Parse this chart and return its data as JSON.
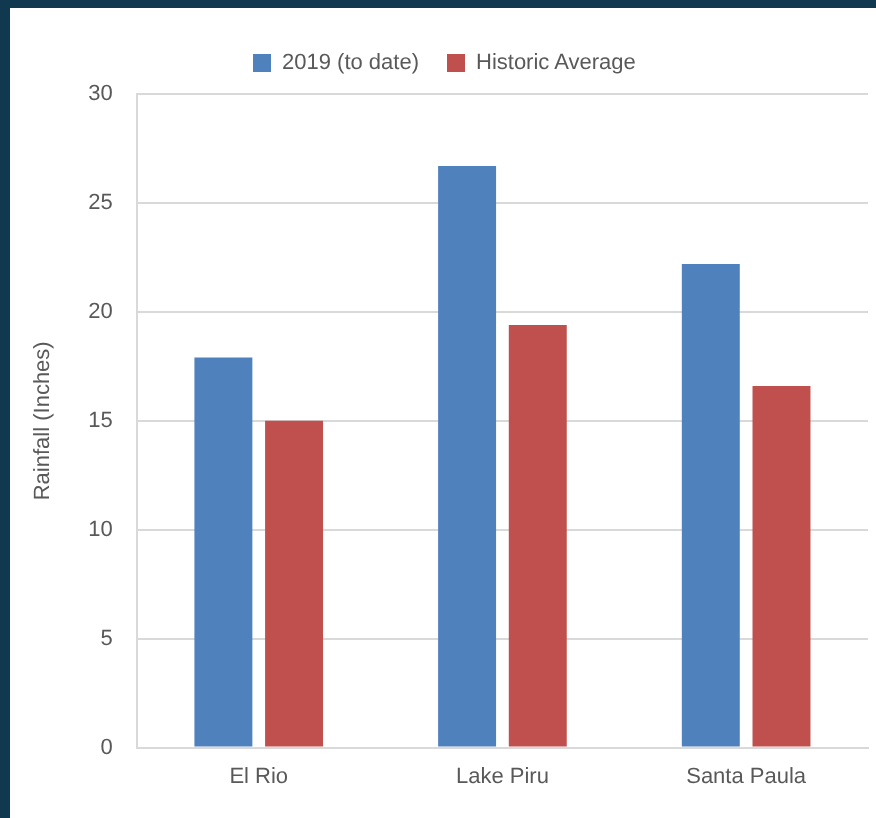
{
  "chart_data": {
    "type": "bar",
    "ylabel": "Rainfall (Inches)",
    "categories": [
      "El Rio",
      "Lake Piru",
      "Santa Paula"
    ],
    "series": [
      {
        "name": "2019 (to date)",
        "color": "#4f81bd",
        "values": [
          17.9,
          26.7,
          22.2
        ]
      },
      {
        "name": "Historic Average",
        "color": "#c0504d",
        "values": [
          15.0,
          19.4,
          16.6
        ]
      }
    ],
    "ylim": [
      0,
      30
    ],
    "yticks": [
      0,
      5,
      10,
      15,
      20,
      25,
      30
    ],
    "grid": "y",
    "legend": "top"
  }
}
